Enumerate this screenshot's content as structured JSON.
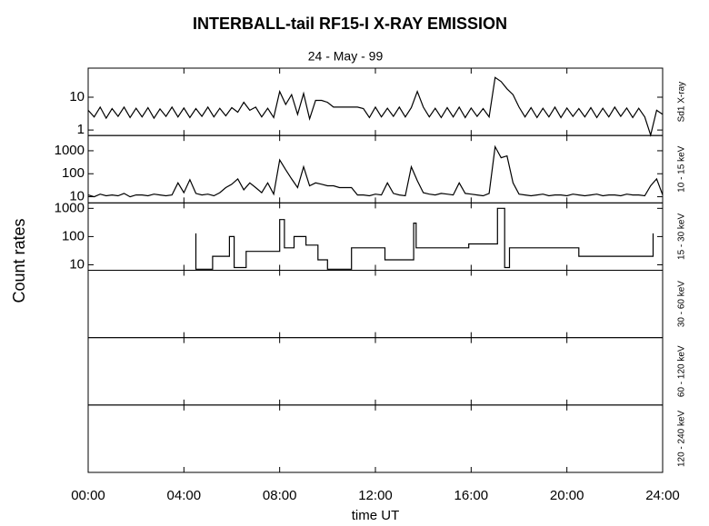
{
  "title": "INTERBALL-tail  RF15-I   X-RAY  EMISSION",
  "subtitle": "24 - May - 99",
  "ylabel": "Count  rates",
  "xlabel": "time UT",
  "xlim": [
    0,
    24
  ],
  "xticks": [
    {
      "value": 0,
      "label": "00:00"
    },
    {
      "value": 4,
      "label": "04:00"
    },
    {
      "value": 8,
      "label": "08:00"
    },
    {
      "value": 12,
      "label": "12:00"
    },
    {
      "value": 16,
      "label": "16:00"
    },
    {
      "value": 20,
      "label": "20:00"
    },
    {
      "value": 24,
      "label": "24:00"
    }
  ],
  "chart_data": [
    {
      "type": "line",
      "label": "Sd1 X-ray",
      "log_y": true,
      "color": "#000000",
      "ylim": [
        0.68,
        77
      ],
      "yticks": [
        1,
        10
      ],
      "x": [
        0,
        0.25,
        0.5,
        0.75,
        1,
        1.25,
        1.5,
        1.75,
        2,
        2.25,
        2.5,
        2.75,
        3,
        3.25,
        3.5,
        3.75,
        4,
        4.25,
        4.5,
        4.75,
        5,
        5.25,
        5.5,
        5.75,
        6,
        6.25,
        6.5,
        6.75,
        7,
        7.25,
        7.5,
        7.75,
        8,
        8.25,
        8.5,
        8.75,
        9,
        9.25,
        9.5,
        9.75,
        10,
        10.25,
        10.5,
        10.75,
        11,
        11.25,
        11.5,
        11.75,
        12,
        12.25,
        12.5,
        12.75,
        13,
        13.25,
        13.5,
        13.75,
        14,
        14.25,
        14.5,
        14.75,
        15,
        15.25,
        15.5,
        15.75,
        16,
        16.25,
        16.5,
        16.75,
        17,
        17.25,
        17.5,
        17.75,
        18,
        18.25,
        18.5,
        18.75,
        19,
        19.25,
        19.5,
        19.75,
        20,
        20.25,
        20.5,
        20.75,
        21,
        21.25,
        21.5,
        21.75,
        22,
        22.25,
        22.5,
        22.75,
        23,
        23.25,
        23.5,
        23.75,
        24
      ],
      "values": [
        4,
        2.5,
        5,
        2.3,
        4.5,
        2.6,
        5,
        2.4,
        4.6,
        2.5,
        4.8,
        2.3,
        4.4,
        2.6,
        5,
        2.5,
        4.7,
        2.4,
        4.5,
        2.6,
        5,
        2.5,
        4.6,
        2.7,
        4.8,
        3.5,
        7,
        4,
        5,
        2.5,
        4.6,
        2.4,
        15,
        6,
        12,
        3,
        13,
        2.2,
        8,
        8,
        7,
        5,
        5,
        5,
        5,
        5,
        4.5,
        2.4,
        5,
        2.5,
        4.6,
        2.6,
        5,
        2.5,
        4.8,
        15,
        5,
        2.5,
        4.6,
        2.4,
        4.8,
        2.5,
        5,
        2.4,
        4.7,
        2.6,
        4.5,
        2.5,
        40,
        30,
        18,
        12,
        5,
        2.5,
        4.8,
        2.4,
        4.6,
        2.5,
        5,
        2.4,
        4.7,
        2.6,
        4.5,
        2.5,
        4.8,
        2.4,
        4.6,
        2.5,
        5,
        2.6,
        4.7,
        2.4,
        4.6,
        2.5,
        0.7,
        4,
        3
      ]
    },
    {
      "type": "line",
      "label": "10 - 15 keV",
      "log_y": true,
      "color": "#000000",
      "ylim": [
        5.4,
        4600
      ],
      "yticks": [
        10,
        100,
        1000
      ],
      "x": [
        0,
        0.25,
        0.5,
        0.75,
        1,
        1.25,
        1.5,
        1.75,
        2,
        2.25,
        2.5,
        2.75,
        3,
        3.25,
        3.5,
        3.75,
        4,
        4.25,
        4.5,
        4.75,
        5,
        5.25,
        5.5,
        5.75,
        6,
        6.25,
        6.5,
        6.75,
        7,
        7.25,
        7.5,
        7.75,
        8,
        8.25,
        8.5,
        8.75,
        9,
        9.25,
        9.5,
        9.75,
        10,
        10.25,
        10.5,
        10.75,
        11,
        11.25,
        11.5,
        11.75,
        12,
        12.25,
        12.5,
        12.75,
        13,
        13.25,
        13.5,
        13.75,
        14,
        14.25,
        14.5,
        14.75,
        15,
        15.25,
        15.5,
        15.75,
        16,
        16.25,
        16.5,
        16.75,
        17,
        17.25,
        17.5,
        17.75,
        18,
        18.25,
        18.5,
        18.75,
        19,
        19.25,
        19.5,
        19.75,
        20,
        20.25,
        20.5,
        20.75,
        21,
        21.25,
        21.5,
        21.75,
        22,
        22.25,
        22.5,
        22.75,
        23,
        23.25,
        23.5,
        23.75,
        24
      ],
      "values": [
        12,
        10,
        13,
        11,
        12,
        11,
        14,
        10,
        12,
        12,
        11,
        13,
        12,
        11,
        12,
        40,
        15,
        55,
        14,
        12,
        13,
        11,
        15,
        25,
        35,
        60,
        20,
        40,
        25,
        15,
        40,
        13,
        400,
        150,
        60,
        25,
        200,
        30,
        40,
        35,
        30,
        30,
        25,
        25,
        25,
        12,
        12,
        11,
        13,
        12,
        40,
        14,
        12,
        11,
        200,
        50,
        15,
        13,
        12,
        14,
        13,
        12,
        40,
        14,
        13,
        12,
        11,
        14,
        1500,
        500,
        600,
        40,
        13,
        12,
        11,
        12,
        13,
        11,
        12,
        12,
        11,
        13,
        12,
        11,
        12,
        13,
        11,
        12,
        12,
        11,
        13,
        12,
        12,
        11,
        30,
        60,
        12
      ]
    },
    {
      "type": "line",
      "label": "15 - 30 keV",
      "log_y": true,
      "color": "#000000",
      "ylim": [
        6.4,
        1560
      ],
      "yticks": [
        10,
        100,
        1000
      ],
      "x": [
        4.5,
        4.5,
        5.2,
        5.2,
        5.9,
        5.9,
        6.1,
        6.1,
        6.6,
        6.6,
        8.0,
        8.0,
        8.2,
        8.2,
        8.6,
        8.6,
        9.1,
        9.1,
        9.6,
        9.6,
        10.0,
        10.0,
        11.0,
        11.0,
        12.4,
        12.4,
        13.6,
        13.6,
        13.7,
        13.7,
        15.9,
        15.9,
        17.1,
        17.1,
        17.4,
        17.4,
        17.6,
        17.6,
        20.5,
        20.5,
        23.6,
        23.6
      ],
      "values": [
        130,
        7,
        7,
        20,
        20,
        100,
        100,
        8,
        8,
        30,
        30,
        400,
        400,
        40,
        40,
        100,
        100,
        50,
        50,
        15,
        15,
        7,
        7,
        40,
        40,
        15,
        15,
        300,
        300,
        40,
        40,
        55,
        55,
        1000,
        1000,
        8,
        8,
        40,
        40,
        20,
        20,
        130
      ]
    },
    {
      "type": "line",
      "label": "30 - 60 keV"
    },
    {
      "type": "line",
      "label": "60 - 120 keV"
    },
    {
      "type": "line",
      "label": "120 - 240 keV"
    }
  ]
}
